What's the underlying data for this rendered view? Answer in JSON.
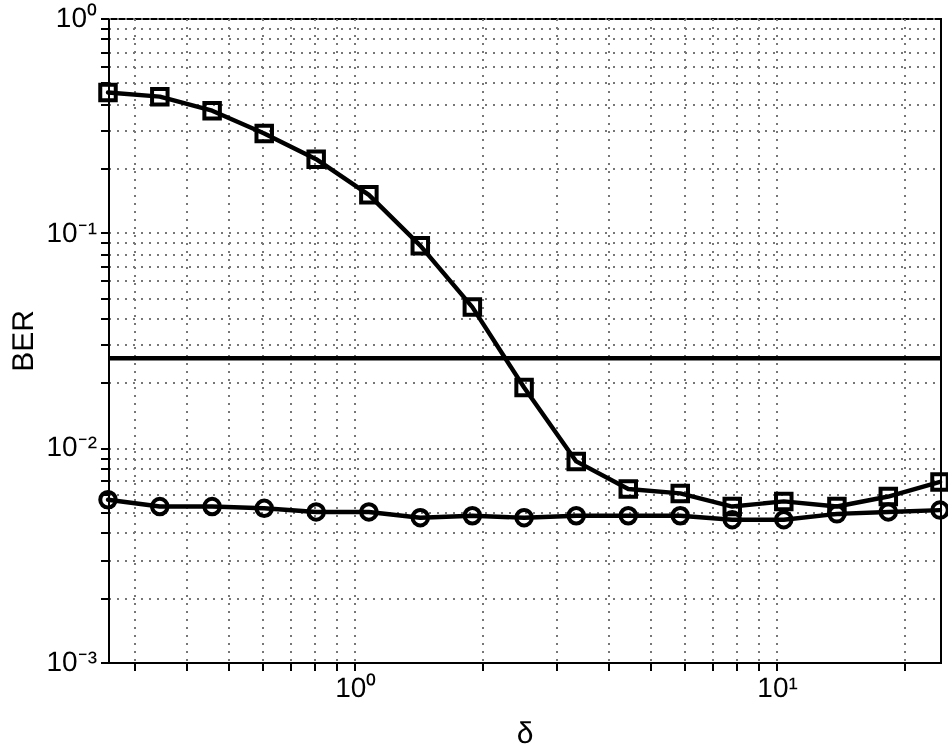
{
  "chart_data": {
    "type": "line",
    "xlabel": "δ",
    "ylabel": "BER",
    "log": "xy",
    "grid": true,
    "line_style": "solid",
    "xlim": [
      0.26,
      24.4
    ],
    "xticks": [
      {
        "value": 0.3,
        "label": null
      },
      {
        "value": 0.4,
        "label": null
      },
      {
        "value": 0.5,
        "label": null
      },
      {
        "value": 0.6,
        "label": null
      },
      {
        "value": 0.7,
        "label": null
      },
      {
        "value": 0.8,
        "label": null
      },
      {
        "value": 0.9,
        "label": null
      },
      {
        "value": 1,
        "label": "10⁰"
      },
      {
        "value": 2,
        "label": null
      },
      {
        "value": 3,
        "label": null
      },
      {
        "value": 4,
        "label": null
      },
      {
        "value": 5,
        "label": null
      },
      {
        "value": 6,
        "label": null
      },
      {
        "value": 7,
        "label": null
      },
      {
        "value": 8,
        "label": null
      },
      {
        "value": 9,
        "label": null
      },
      {
        "value": 10,
        "label": "10¹"
      },
      {
        "value": 20,
        "label": null
      }
    ],
    "ylim": [
      0.001,
      1
    ],
    "yticks": [
      {
        "value": 0.001,
        "label": "10⁻³"
      },
      {
        "value": 0.002,
        "label": null
      },
      {
        "value": 0.003,
        "label": null
      },
      {
        "value": 0.004,
        "label": null
      },
      {
        "value": 0.005,
        "label": null
      },
      {
        "value": 0.006,
        "label": null
      },
      {
        "value": 0.007,
        "label": null
      },
      {
        "value": 0.008,
        "label": null
      },
      {
        "value": 0.009,
        "label": null
      },
      {
        "value": 0.01,
        "label": "10⁻²"
      },
      {
        "value": 0.02,
        "label": null
      },
      {
        "value": 0.03,
        "label": null
      },
      {
        "value": 0.04,
        "label": null
      },
      {
        "value": 0.05,
        "label": null
      },
      {
        "value": 0.06,
        "label": null
      },
      {
        "value": 0.07,
        "label": null
      },
      {
        "value": 0.08,
        "label": null
      },
      {
        "value": 0.09,
        "label": null
      },
      {
        "value": 0.1,
        "label": "10⁻¹"
      },
      {
        "value": 0.2,
        "label": null
      },
      {
        "value": 0.3,
        "label": null
      },
      {
        "value": 0.4,
        "label": null
      },
      {
        "value": 0.5,
        "label": null
      },
      {
        "value": 0.6,
        "label": null
      },
      {
        "value": 0.7,
        "label": null
      },
      {
        "value": 0.8,
        "label": null
      },
      {
        "value": 0.9,
        "label": null
      },
      {
        "value": 1,
        "label": "10⁰"
      }
    ],
    "x": [
      0.26,
      0.345,
      0.459,
      0.61,
      0.81,
      1.08,
      1.43,
      1.9,
      2.52,
      3.35,
      4.45,
      5.91,
      7.85,
      10.4,
      13.9,
      18.4,
      24.4
    ],
    "series": [
      {
        "color": "#000000",
        "marker": "square",
        "values": [
          0.45,
          0.43,
          0.37,
          0.29,
          0.22,
          0.15,
          0.087,
          0.045,
          0.019,
          0.0086,
          0.0064,
          0.0061,
          0.0053,
          0.0056,
          0.0053,
          0.0059,
          0.0069
        ]
      },
      {
        "color": "#000000",
        "marker": "circle",
        "values": [
          0.0057,
          0.0053,
          0.0053,
          0.0052,
          0.005,
          0.005,
          0.0047,
          0.0048,
          0.0047,
          0.0048,
          0.0048,
          0.0048,
          0.0046,
          0.0046,
          0.0049,
          0.005,
          0.0051
        ]
      }
    ],
    "ref_lines": [
      {
        "axis": "y",
        "value": 0.026,
        "color": "#000000",
        "line_style": "solid"
      }
    ]
  }
}
